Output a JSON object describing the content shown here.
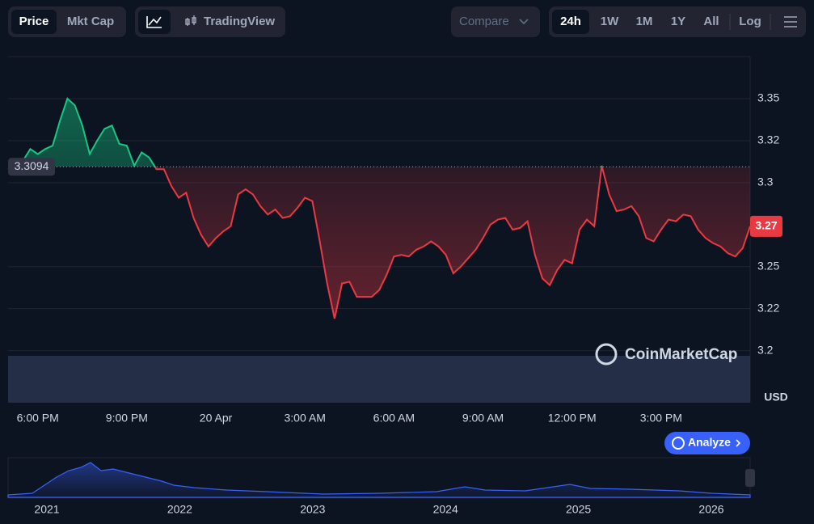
{
  "toolbar": {
    "price": "Price",
    "mkt_cap": "Mkt Cap",
    "tradingview": "TradingView",
    "compare": "Compare",
    "ranges": [
      "24h",
      "1W",
      "1M",
      "1Y",
      "All"
    ],
    "log": "Log"
  },
  "chart_data": {
    "type": "line",
    "categories": [
      null,
      null,
      null,
      null,
      "6:00 PM",
      null,
      null,
      null,
      null,
      null,
      null,
      null,
      null,
      null,
      null,
      null,
      "9:00 PM",
      null,
      null,
      null,
      null,
      null,
      null,
      null,
      null,
      null,
      null,
      null,
      "20 Apr",
      null,
      null,
      null,
      null,
      null,
      null,
      null,
      null,
      null,
      null,
      null,
      "3:00 AM",
      null,
      null,
      null,
      null,
      null,
      null,
      null,
      null,
      null,
      null,
      null,
      "6:00 AM",
      null,
      null,
      null,
      null,
      null,
      null,
      null,
      null,
      null,
      null,
      null,
      "9:00 AM",
      null,
      null,
      null,
      null,
      null,
      null,
      null,
      null,
      null,
      null,
      null,
      "12:00 PM",
      null,
      null,
      null,
      null,
      null,
      null,
      null,
      null,
      null,
      null,
      null,
      "3:00 PM",
      null,
      null,
      null,
      null,
      null,
      null,
      null,
      null,
      null,
      null,
      null,
      null
    ],
    "series": [
      {
        "values": [
          3.308,
          3.31,
          3.313,
          3.32,
          3.317,
          3.32,
          3.322,
          3.337,
          3.35,
          3.346,
          3.334,
          3.317,
          3.325,
          3.332,
          3.334,
          3.323,
          3.322,
          3.31,
          3.318,
          3.315,
          3.308,
          3.308,
          3.298,
          3.291,
          3.294,
          3.279,
          3.269,
          3.262,
          3.267,
          3.271,
          3.274,
          3.293,
          3.296,
          3.293,
          3.286,
          3.281,
          3.284,
          3.279,
          3.28,
          3.285,
          3.291,
          3.289,
          3.265,
          3.24,
          3.219,
          3.24,
          3.241,
          3.232,
          3.232,
          3.232,
          3.236,
          3.245,
          3.256,
          3.257,
          3.256,
          3.26,
          3.262,
          3.265,
          3.262,
          3.257,
          3.246,
          3.25,
          3.255,
          3.26,
          3.267,
          3.275,
          3.278,
          3.279,
          3.272,
          3.273,
          3.277,
          3.257,
          3.243,
          3.239,
          3.248,
          3.254,
          3.252,
          3.272,
          3.278,
          3.274,
          3.31,
          3.293,
          3.283,
          3.284,
          3.286,
          3.28,
          3.267,
          3.265,
          3.272,
          3.278,
          3.277,
          3.281,
          3.28,
          3.272,
          3.267,
          3.264,
          3.262,
          3.258,
          3.256,
          3.261,
          3.274
        ]
      }
    ],
    "up_color": "#16c784",
    "down_color": "#ea3943",
    "baseline": 3.3094,
    "current_price_label": "3.27",
    "ylim": [
      3.169,
      3.375
    ],
    "yticks": [
      3.35,
      {
        "value": 3.325,
        "label": "3.32"
      },
      3.3,
      {
        "value": 3.225,
        "label": "3.22"
      },
      3.25,
      3.2
    ],
    "y_unit": "USD",
    "grid": true
  },
  "brand": "CoinMarketCap",
  "analyze": "Analyze",
  "navigator": {
    "years": [
      "2021",
      "2022",
      "2023",
      "2024",
      "2025",
      "2026"
    ]
  }
}
